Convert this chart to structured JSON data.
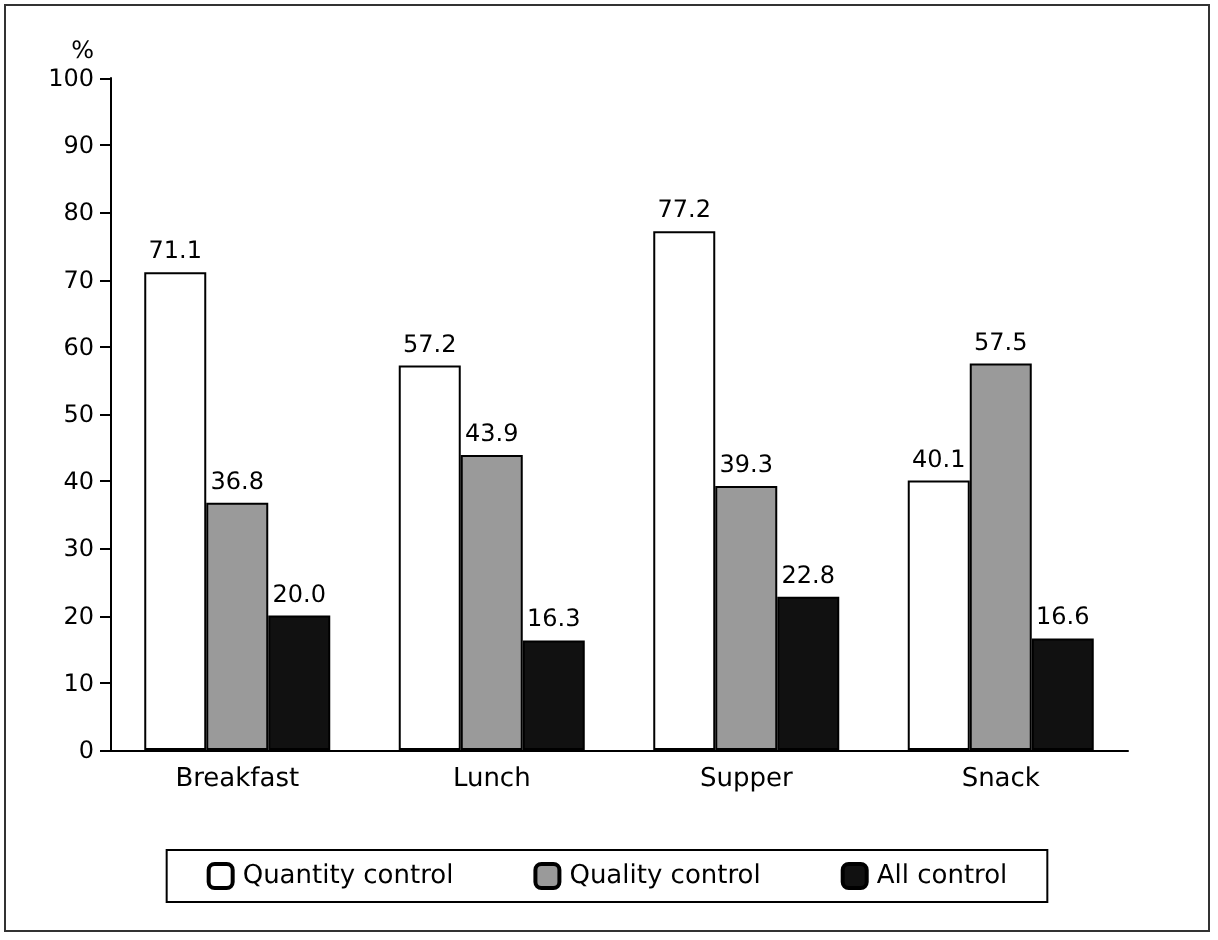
{
  "chart_data": {
    "type": "bar",
    "ylabel": "%",
    "categories": [
      "Breakfast",
      "Lunch",
      "Supper",
      "Snack"
    ],
    "series": [
      {
        "name": "Quantity control",
        "color": "#ffffff",
        "values": [
          71.1,
          57.2,
          77.2,
          40.1
        ],
        "value_labels": [
          "71.1",
          "57.2",
          "77.2",
          "40.1"
        ]
      },
      {
        "name": "Quality control",
        "color": "#9a9a9a",
        "values": [
          36.8,
          43.9,
          39.3,
          57.5
        ],
        "value_labels": [
          "36.8",
          "43.9",
          "39.3",
          "57.5"
        ]
      },
      {
        "name": "All control",
        "color": "#111111",
        "values": [
          20.0,
          16.3,
          22.8,
          16.6
        ],
        "value_labels": [
          "20.0",
          "16.3",
          "22.8",
          "16.6"
        ]
      }
    ],
    "ylim": [
      0,
      100
    ],
    "yticks": [
      0,
      10,
      20,
      30,
      40,
      50,
      60,
      70,
      80,
      90,
      100
    ],
    "grid": false,
    "legend": "bottom"
  }
}
